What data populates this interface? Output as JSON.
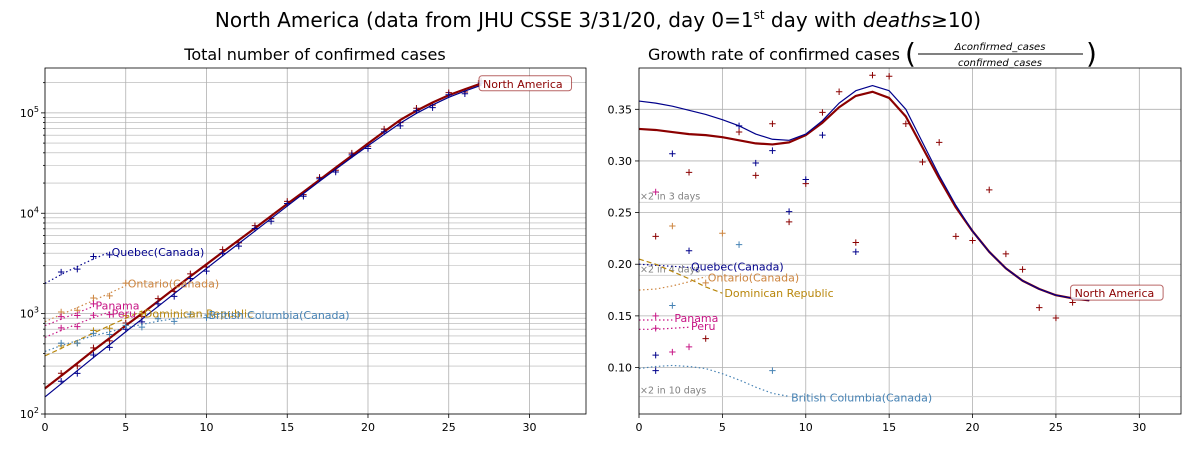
{
  "suptitle": {
    "text": "North America (data from JHU CSSE 3/31/20, day 0=1",
    "sup": "st",
    "mid": " day with ",
    "italic": "deaths",
    "tail": "≥10)"
  },
  "chart_data": [
    {
      "type": "line",
      "title": "Total number of confirmed cases",
      "yscale": "log",
      "xlim": [
        0,
        33.5
      ],
      "ylim": [
        100,
        280000
      ],
      "xticks": [
        0,
        5,
        10,
        15,
        20,
        25,
        30
      ],
      "ytick_labels": [
        {
          "value": 100,
          "base": "10",
          "exp": "2"
        },
        {
          "value": 1000,
          "base": "10",
          "exp": "3"
        },
        {
          "value": 10000,
          "base": "10",
          "exp": "4"
        },
        {
          "value": 100000,
          "base": "10",
          "exp": "5"
        }
      ],
      "grid": "major and minor",
      "series": [
        {
          "name": "North America",
          "color": "#8b0000",
          "style": "solid",
          "width": 2.2,
          "label_box": true,
          "label_at": [
            27,
            195000
          ],
          "x": [
            0,
            1,
            2,
            3,
            4,
            5,
            6,
            7,
            8,
            9,
            10,
            11,
            12,
            13,
            14,
            15,
            16,
            17,
            18,
            19,
            20,
            21,
            22,
            23,
            24,
            25,
            26,
            27
          ],
          "y": [
            180,
            240,
            320,
            430,
            570,
            760,
            1000,
            1330,
            1770,
            2350,
            3100,
            4100,
            5400,
            7100,
            9400,
            12400,
            16300,
            21500,
            28500,
            37500,
            49500,
            65000,
            85000,
            105000,
            127000,
            150000,
            172000,
            196000
          ]
        },
        {
          "name": "",
          "color": "#00008b",
          "style": "solid",
          "width": 1.2,
          "x": [
            0,
            1,
            2,
            3,
            4,
            5,
            6,
            7,
            8,
            9,
            10,
            11,
            12,
            13,
            14,
            15,
            16,
            17,
            18,
            19,
            20,
            21,
            22,
            23,
            24,
            25,
            26,
            27
          ],
          "y": [
            148,
            200,
            270,
            365,
            490,
            660,
            880,
            1180,
            1580,
            2110,
            2820,
            3760,
            5000,
            6650,
            8850,
            11800,
            15700,
            20800,
            27400,
            36000,
            47000,
            61000,
            79000,
            99000,
            120000,
            143000,
            165000,
            188000
          ]
        },
        {
          "name": "Quebec(Canada)",
          "color": "#00008b",
          "style": "dotted",
          "width": 1.2,
          "label_at": [
            4,
            4100
          ],
          "x": [
            0,
            1,
            2,
            3,
            4
          ],
          "y": [
            2000,
            2450,
            2950,
            3500,
            4100
          ]
        },
        {
          "name": "Ontario(Canada)",
          "color": "#cd853f",
          "style": "dotted",
          "width": 1.2,
          "label_at": [
            5,
            2000
          ],
          "x": [
            0,
            1,
            2,
            3,
            4,
            5
          ],
          "y": [
            830,
            980,
            1150,
            1350,
            1600,
            1900
          ]
        },
        {
          "name": "Panama",
          "color": "#c71585",
          "style": "dotted",
          "width": 1.2,
          "label_at": [
            3,
            1200
          ],
          "x": [
            0,
            1,
            2,
            3
          ],
          "y": [
            760,
            880,
            1020,
            1180
          ]
        },
        {
          "name": "Peru",
          "color": "#c71585",
          "style": "dotted",
          "width": 1.2,
          "label_at": [
            4,
            1000
          ],
          "x": [
            0,
            1,
            2,
            3,
            4
          ],
          "y": [
            580,
            680,
            790,
            910,
            1040
          ]
        },
        {
          "name": "Dominican Republic",
          "color": "#b8860b",
          "style": "dashed",
          "width": 1.2,
          "label_at": [
            6,
            1000
          ],
          "x": [
            0,
            1,
            2,
            3,
            4,
            5,
            6
          ],
          "y": [
            380,
            450,
            540,
            640,
            760,
            900,
            1060
          ]
        },
        {
          "name": "British Columbia(Canada)",
          "color": "#4682b4",
          "style": "dotted",
          "width": 1.2,
          "label_at": [
            10,
            970
          ],
          "x": [
            0,
            1,
            2,
            3,
            4,
            5,
            6,
            7,
            8,
            9,
            10
          ],
          "y": [
            420,
            480,
            540,
            600,
            660,
            720,
            780,
            840,
            890,
            930,
            970
          ]
        }
      ]
    },
    {
      "type": "line",
      "title": "Growth rate of confirmed cases",
      "title_frac": {
        "num": "Δconfirmed_cases",
        "den": "confirmed_cases"
      },
      "xlim": [
        0,
        32.5
      ],
      "ylim": [
        0.055,
        0.39
      ],
      "xticks": [
        0,
        5,
        10,
        15,
        20,
        25,
        30
      ],
      "yticks": [
        0.1,
        0.15,
        0.2,
        0.25,
        0.3,
        0.35
      ],
      "ytick_text": [
        "0.10",
        "0.15",
        "0.20",
        "0.25",
        "0.30",
        "0.35"
      ],
      "grid": "major",
      "reference_lines": [
        {
          "label": "×2 in 3 days",
          "y": 0.2599
        },
        {
          "label": "×2 in 4 days",
          "y": 0.1892
        },
        {
          "label": "×2 in 10 days",
          "y": 0.0718
        }
      ],
      "series": [
        {
          "name": "North America",
          "color": "#8b0000",
          "style": "solid",
          "width": 2.2,
          "label_box": true,
          "label_at": [
            26,
            0.172
          ],
          "x": [
            0,
            1,
            2,
            3,
            4,
            5,
            6,
            7,
            8,
            9,
            10,
            11,
            12,
            13,
            14,
            15,
            16,
            17,
            18,
            19,
            20,
            21,
            22,
            23,
            24,
            25,
            26,
            27
          ],
          "y": [
            0.331,
            0.33,
            0.328,
            0.326,
            0.325,
            0.323,
            0.32,
            0.317,
            0.316,
            0.318,
            0.325,
            0.337,
            0.352,
            0.363,
            0.367,
            0.361,
            0.343,
            0.313,
            0.283,
            0.255,
            0.232,
            0.212,
            0.196,
            0.184,
            0.176,
            0.17,
            0.167,
            0.165
          ]
        },
        {
          "name": "",
          "color": "#00008b",
          "style": "solid",
          "width": 1.2,
          "x": [
            0,
            1,
            2,
            3,
            4,
            5,
            6,
            7,
            8,
            9,
            10,
            11,
            12,
            13,
            14,
            15,
            16,
            17,
            18,
            19,
            20,
            21,
            22,
            23,
            24,
            25,
            26,
            27
          ],
          "y": [
            0.358,
            0.356,
            0.353,
            0.349,
            0.345,
            0.34,
            0.334,
            0.326,
            0.321,
            0.32,
            0.326,
            0.339,
            0.356,
            0.368,
            0.373,
            0.368,
            0.35,
            0.318,
            0.286,
            0.257,
            0.232,
            0.212,
            0.196,
            0.184,
            0.176,
            0.17,
            0.167,
            0.165
          ]
        },
        {
          "name": "Quebec(Canada)",
          "color": "#00008b",
          "style": "dotted",
          "width": 1.2,
          "label_at": [
            3,
            0.198
          ],
          "x": [
            0,
            1,
            2,
            3
          ],
          "y": [
            0.2,
            0.199,
            0.198,
            0.197
          ]
        },
        {
          "name": "Ontario(Canada)",
          "color": "#cd853f",
          "style": "dotted",
          "width": 1.2,
          "label_at": [
            4,
            0.187
          ],
          "x": [
            0,
            1,
            2,
            3,
            4
          ],
          "y": [
            0.175,
            0.176,
            0.179,
            0.183,
            0.188
          ]
        },
        {
          "name": "Dominican Republic",
          "color": "#b8860b",
          "style": "dashed",
          "width": 1.2,
          "label_at": [
            5,
            0.172
          ],
          "x": [
            0,
            1,
            2,
            3,
            4,
            5
          ],
          "y": [
            0.205,
            0.2,
            0.193,
            0.186,
            0.178,
            0.172
          ]
        },
        {
          "name": "Panama",
          "color": "#c71585",
          "style": "dotted",
          "width": 1.2,
          "label_at": [
            2,
            0.148
          ],
          "x": [
            0,
            1,
            2
          ],
          "y": [
            0.146,
            0.146,
            0.146
          ]
        },
        {
          "name": "Peru",
          "color": "#c71585",
          "style": "dotted",
          "width": 1.2,
          "label_at": [
            3,
            0.14
          ],
          "x": [
            0,
            1,
            2,
            3
          ],
          "y": [
            0.137,
            0.137,
            0.138,
            0.139
          ]
        },
        {
          "name": "British Columbia(Canada)",
          "color": "#4682b4",
          "style": "dotted",
          "width": 1.2,
          "label_at": [
            9,
            0.071
          ],
          "x": [
            0,
            1,
            2,
            3,
            4,
            5,
            6,
            7,
            8,
            9
          ],
          "y": [
            0.099,
            0.101,
            0.102,
            0.101,
            0.099,
            0.094,
            0.088,
            0.081,
            0.075,
            0.072
          ]
        }
      ],
      "markers": [
        {
          "color": "#8b0000",
          "points": [
            [
              6,
              0.328
            ],
            [
              7,
              0.286
            ],
            [
              8,
              0.336
            ],
            [
              9,
              0.241
            ],
            [
              10,
              0.278
            ],
            [
              11,
              0.347
            ],
            [
              12,
              0.367
            ],
            [
              13,
              0.221
            ],
            [
              14,
              0.383
            ],
            [
              15,
              0.382
            ],
            [
              16,
              0.336
            ],
            [
              17,
              0.299
            ],
            [
              18,
              0.318
            ],
            [
              19,
              0.227
            ],
            [
              20,
              0.223
            ],
            [
              21,
              0.272
            ],
            [
              22,
              0.21
            ],
            [
              23,
              0.195
            ],
            [
              24,
              0.158
            ],
            [
              25,
              0.148
            ],
            [
              26,
              0.163
            ],
            [
              1,
              0.227
            ],
            [
              3,
              0.289
            ],
            [
              4,
              0.128
            ]
          ]
        },
        {
          "color": "#00008b",
          "points": [
            [
              1,
              0.112
            ],
            [
              2,
              0.307
            ],
            [
              3,
              0.213
            ],
            [
              6,
              0.334
            ],
            [
              7,
              0.298
            ],
            [
              8,
              0.31
            ],
            [
              9,
              0.251
            ],
            [
              10,
              0.282
            ],
            [
              11,
              0.325
            ],
            [
              13,
              0.212
            ],
            [
              1,
              0.097
            ]
          ]
        },
        {
          "color": "#cd853f",
          "points": [
            [
              2,
              0.237
            ],
            [
              5,
              0.23
            ],
            [
              4,
              0.182
            ]
          ]
        },
        {
          "color": "#c71585",
          "points": [
            [
              1,
              0.27
            ],
            [
              1,
              0.15
            ],
            [
              2,
              0.115
            ],
            [
              3,
              0.12
            ],
            [
              1,
              0.138
            ]
          ]
        },
        {
          "color": "#4682b4",
          "points": [
            [
              6,
              0.219
            ],
            [
              8,
              0.097
            ],
            [
              2,
              0.16
            ]
          ]
        }
      ]
    }
  ]
}
